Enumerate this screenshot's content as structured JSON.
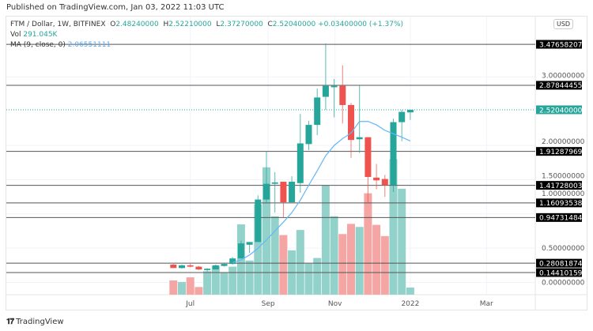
{
  "published": "Published on TradingView.com, Jan 03, 2022 11:03 UTC",
  "legend": {
    "symbol": "FTM / Dollar, 1W, BITFINEX",
    "open": "2.48240000",
    "high": "2.52210000",
    "low": "2.37270000",
    "close": "2.52040000",
    "change": "+0.03400000 (+1.37%)",
    "vol_label": "Vol",
    "vol_value": "291.045K",
    "ma_label": "MA (9, close, 0)",
    "ma_value": "2.06551111"
  },
  "currency": "USD",
  "footer": {
    "logo_text": "TradingView"
  },
  "colors": {
    "up": "#26a69a",
    "down": "#ef5350",
    "up_vol": "#93d2cb",
    "down_vol": "#f5a5a3",
    "ma": "#64b5f6",
    "last_price": "#26a69a"
  },
  "chart_data": {
    "type": "candlestick",
    "title": "FTM / Dollar, 1W, BITFINEX",
    "ylim": [
      0,
      4.0
    ],
    "y_ticks": [
      "0.00000000",
      "0.50000000",
      "1.00000000",
      "1.50000000",
      "2.00000000",
      "3.00000000"
    ],
    "y_tick_values": [
      0,
      0.5,
      1.0,
      1.5,
      2.0,
      3.0
    ],
    "x_ticks": [
      {
        "label": "Jul",
        "index": 2
      },
      {
        "label": "Sep",
        "index": 11.2
      },
      {
        "label": "Nov",
        "index": 19.1
      },
      {
        "label": "2022",
        "index": 28
      },
      {
        "label": "Mar",
        "index": 37
      }
    ],
    "grid": true,
    "candles": [
      [
        0.26,
        0.27,
        0.21,
        0.21
      ],
      [
        0.21,
        0.26,
        0.2,
        0.25
      ],
      [
        0.25,
        0.27,
        0.22,
        0.23
      ],
      [
        0.23,
        0.24,
        0.18,
        0.19
      ],
      [
        0.18,
        0.21,
        0.16,
        0.2
      ],
      [
        0.19,
        0.26,
        0.19,
        0.25
      ],
      [
        0.24,
        0.28,
        0.23,
        0.27
      ],
      [
        0.27,
        0.37,
        0.26,
        0.35
      ],
      [
        0.35,
        0.61,
        0.35,
        0.57
      ],
      [
        0.55,
        0.59,
        0.43,
        0.59
      ],
      [
        0.59,
        1.27,
        0.59,
        1.21
      ],
      [
        1.21,
        1.92,
        1.16,
        1.44
      ],
      [
        1.44,
        1.61,
        1.02,
        1.46
      ],
      [
        1.47,
        1.47,
        0.95,
        1.17
      ],
      [
        1.17,
        1.55,
        1.17,
        1.47
      ],
      [
        1.45,
        2.46,
        1.31,
        2.03
      ],
      [
        2.02,
        2.36,
        1.93,
        2.3
      ],
      [
        2.3,
        2.83,
        2.15,
        2.7
      ],
      [
        2.71,
        3.49,
        2.52,
        2.87
      ],
      [
        2.85,
        2.97,
        2.41,
        2.87
      ],
      [
        2.87,
        3.17,
        2.32,
        2.59
      ],
      [
        2.59,
        2.62,
        1.82,
        2.08
      ],
      [
        2.09,
        2.87,
        1.89,
        2.12
      ],
      [
        2.12,
        2.12,
        1.16,
        1.54
      ],
      [
        1.53,
        1.73,
        1.36,
        1.49
      ],
      [
        1.51,
        1.57,
        1.25,
        1.42
      ],
      [
        1.42,
        2.39,
        1.32,
        2.34
      ],
      [
        2.34,
        2.52,
        2.06,
        2.49
      ],
      [
        2.4824,
        2.5221,
        2.3727,
        2.5204
      ]
    ],
    "candle_fields": [
      "open",
      "high",
      "low",
      "close"
    ],
    "volume_k": [
      582,
      520,
      707,
      312,
      957,
      1186,
      894,
      1144,
      2870,
      1394,
      3682,
      5200,
      3203,
      2434,
      1810,
      2642,
      1269,
      1498,
      4451,
      3203,
      2475,
      2891,
      2766,
      4139,
      2850,
      2392,
      5533,
      4326,
      291.045
    ],
    "ma9": [
      null,
      null,
      null,
      null,
      null,
      null,
      null,
      0.29,
      0.33,
      0.4,
      0.5,
      0.62,
      0.75,
      0.88,
      1.02,
      1.2,
      1.42,
      1.63,
      1.85,
      2.0,
      2.1,
      2.18,
      2.35,
      2.35,
      2.3,
      2.22,
      2.17,
      2.12,
      2.0655
    ],
    "last_price": "2.52040000",
    "horizontal_levels": [
      "3.47658207",
      "2.87844455",
      "1.91287969",
      "1.41728003",
      "1.16093538",
      "0.94731484",
      "0.28081874",
      "0.14410159"
    ]
  }
}
